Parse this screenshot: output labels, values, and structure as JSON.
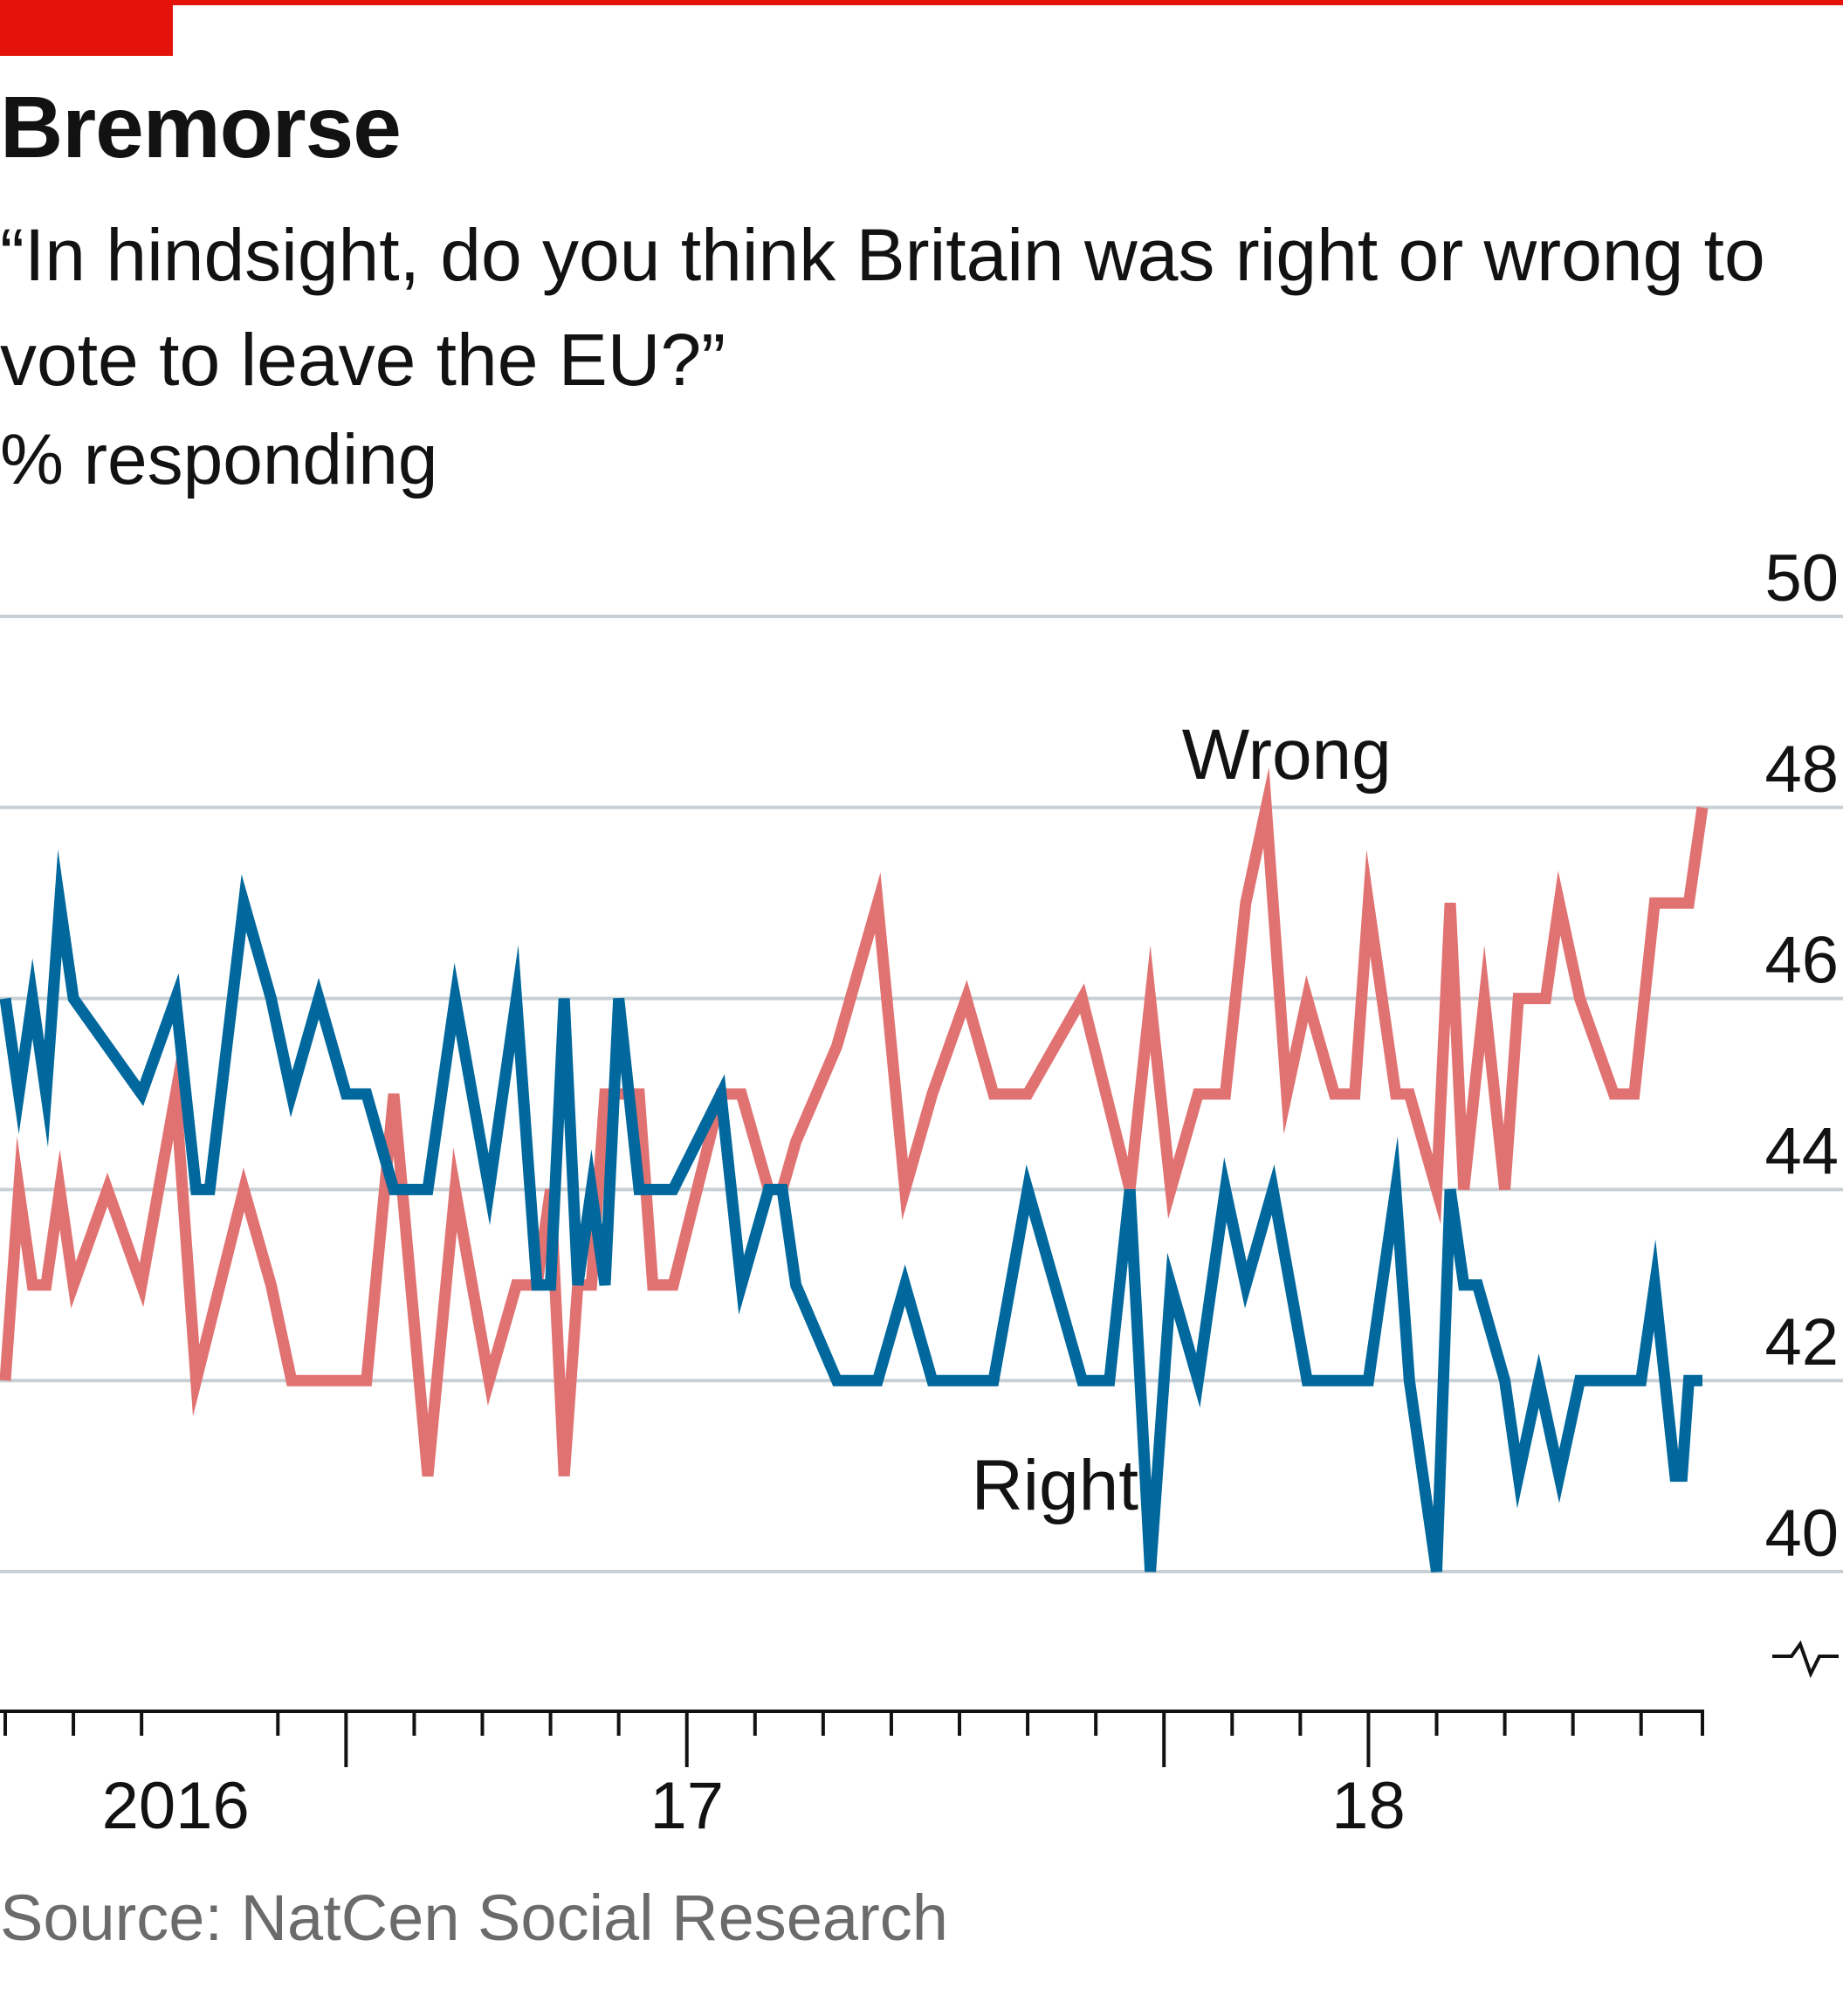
{
  "title": "Bremorse",
  "subtitle": "“In hindsight, do you think Britain was right or wrong to vote to leave the EU?”",
  "unit": "% responding",
  "source": "Source: NatCen Social Research",
  "colors": {
    "accent": "#e3120b",
    "wrong": "#e17272",
    "right": "#00689d",
    "grid": "#c8d0d5"
  },
  "chart_data": {
    "type": "line",
    "title": "Bremorse",
    "ylim": [
      40,
      50
    ],
    "yticks": [
      40,
      42,
      44,
      46,
      48,
      50
    ],
    "axis_break": true,
    "xlim": [
      2016.0,
      2018.49
    ],
    "xtick_labels": [
      {
        "x": 2016.25,
        "label": "2016"
      },
      {
        "x": 2017.0,
        "label": "17"
      },
      {
        "x": 2018.0,
        "label": "18"
      }
    ],
    "xticks_minor": [
      2016.0,
      2016.1,
      2016.2,
      2016.4,
      2016.6,
      2016.7,
      2016.8,
      2016.9,
      2017.1,
      2017.2,
      2017.3,
      2017.4,
      2017.5,
      2017.6,
      2017.8,
      2017.9,
      2018.1,
      2018.2,
      2018.3,
      2018.4,
      2018.49
    ],
    "xticks_major": [
      2016.5,
      2017.0,
      2017.7,
      2018.0
    ],
    "grid": true,
    "series": [
      {
        "name": "Wrong",
        "label_x": 2017.88,
        "label_y": 48.3,
        "color": "#e17272",
        "x": [
          2016.0,
          2016.02,
          2016.04,
          2016.06,
          2016.08,
          2016.1,
          2016.15,
          2016.2,
          2016.25,
          2016.28,
          2016.35,
          2016.39,
          2016.42,
          2016.46,
          2016.5,
          2016.53,
          2016.57,
          2016.62,
          2016.66,
          2016.71,
          2016.75,
          2016.78,
          2016.8,
          2016.82,
          2016.84,
          2016.86,
          2016.88,
          2016.9,
          2016.93,
          2016.95,
          2016.98,
          2017.05,
          2017.08,
          2017.12,
          2017.14,
          2017.16,
          2017.22,
          2017.28,
          2017.32,
          2017.36,
          2017.41,
          2017.45,
          2017.5,
          2017.58,
          2017.65,
          2017.68,
          2017.71,
          2017.75,
          2017.77,
          2017.79,
          2017.82,
          2017.85,
          2017.88,
          2017.91,
          2017.95,
          2017.98,
          2018.0,
          2018.04,
          2018.06,
          2018.1,
          2018.12,
          2018.14,
          2018.17,
          2018.2,
          2018.22,
          2018.26,
          2018.28,
          2018.31,
          2018.36,
          2018.39,
          2018.42,
          2018.43,
          2018.45,
          2018.46,
          2018.47,
          2018.49
        ],
        "y": [
          42,
          44,
          43,
          43,
          44,
          43,
          44,
          43,
          45,
          42,
          44,
          43,
          42,
          42,
          42,
          42,
          45,
          41,
          44,
          42,
          43,
          43,
          44,
          41,
          43,
          43,
          45,
          45,
          45,
          43,
          43,
          45,
          45,
          44,
          44,
          44.5,
          45.5,
          47,
          44,
          45,
          46,
          45,
          45,
          46,
          44,
          46,
          44,
          45,
          45,
          45,
          47,
          48,
          45,
          46,
          45,
          45,
          47,
          45,
          45,
          44,
          47,
          44,
          46,
          44,
          46,
          46,
          47,
          46,
          45,
          45,
          47,
          47,
          47,
          47,
          47,
          48
        ]
      },
      {
        "name": "Right",
        "label_x": 2017.54,
        "label_y": 40.65,
        "color": "#00689d",
        "x": [
          2016.0,
          2016.02,
          2016.04,
          2016.06,
          2016.08,
          2016.1,
          2016.15,
          2016.2,
          2016.25,
          2016.28,
          2016.3,
          2016.35,
          2016.39,
          2016.42,
          2016.46,
          2016.5,
          2016.53,
          2016.57,
          2016.62,
          2016.66,
          2016.71,
          2016.75,
          2016.78,
          2016.8,
          2016.82,
          2016.84,
          2016.86,
          2016.88,
          2016.9,
          2016.93,
          2016.95,
          2016.98,
          2017.05,
          2017.08,
          2017.12,
          2017.14,
          2017.16,
          2017.22,
          2017.28,
          2017.32,
          2017.36,
          2017.41,
          2017.45,
          2017.5,
          2017.58,
          2017.62,
          2017.65,
          2017.68,
          2017.71,
          2017.75,
          2017.79,
          2017.82,
          2017.86,
          2017.91,
          2017.95,
          2017.98,
          2018.0,
          2018.04,
          2018.06,
          2018.1,
          2018.12,
          2018.14,
          2018.16,
          2018.2,
          2018.22,
          2018.25,
          2018.28,
          2018.31,
          2018.36,
          2018.38,
          2018.4,
          2018.42,
          2018.45,
          2018.46,
          2018.47,
          2018.49
        ],
        "y": [
          46,
          45,
          46,
          45,
          47,
          46,
          45.5,
          45,
          46,
          44,
          44,
          47,
          46,
          45,
          46,
          45,
          45,
          44,
          44,
          46,
          44,
          46,
          43,
          43,
          46,
          43,
          44,
          43,
          46,
          44,
          44,
          44,
          45,
          43,
          44,
          44,
          43,
          42,
          42,
          43,
          42,
          42,
          42,
          44,
          42,
          42,
          44,
          40,
          43,
          42,
          44,
          43,
          44,
          42,
          42,
          42,
          42,
          44,
          42,
          40,
          44,
          43,
          43,
          42,
          41,
          42,
          41,
          42,
          42,
          42,
          42,
          43,
          41,
          41,
          42,
          42
        ]
      }
    ]
  }
}
